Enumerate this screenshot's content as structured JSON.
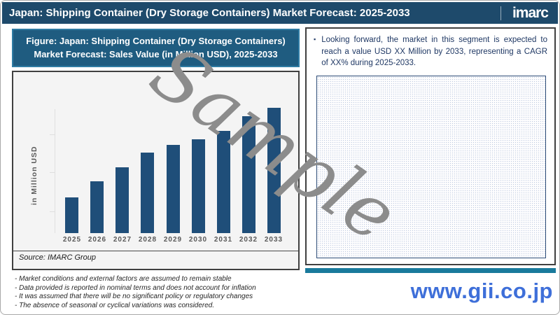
{
  "header": {
    "title": "Japan: Shipping Container (Dry Storage Containers) Market Forecast: 2025-2033",
    "logo": "imarc"
  },
  "figure": {
    "title": "Figure: Japan: Shipping Container (Dry Storage Containers) Market Forecast: Sales Value (in Million USD), 2025-2033",
    "source": "Source: IMARC Group"
  },
  "chart_data": {
    "type": "bar",
    "title": "Japan: Shipping Container (Dry Storage Containers) Market Forecast: Sales Value (in Million USD), 2025-2033",
    "categories": [
      "2025",
      "2026",
      "2027",
      "2028",
      "2029",
      "2030",
      "2031",
      "2032",
      "2033"
    ],
    "values": [
      28.5,
      41.5,
      52.5,
      64,
      70.5,
      75,
      81.5,
      93.5,
      100
    ],
    "values_note": "Bars are unlabeled in the figure (values shown as XX in text); heights are relative estimates with 2033 = 100",
    "xlabel": "",
    "ylabel": "in Million USD",
    "legend_visible": false,
    "grid": false,
    "y_ticks_labeled": false
  },
  "insight": {
    "bullet_glyph": "▪",
    "bullet": "Looking forward, the market in this segment is expected to reach a value USD XX Million by 2033, representing a CAGR of XX% during 2025-2033."
  },
  "notes": [
    "- Market conditions and external factors are assumed to remain stable",
    "- Data provided is reported in nominal terms and does not account for inflation",
    "- It was assumed that there will be no significant policy or regulatory changes",
    "- The absence of seasonal or cyclical variations was considered."
  ],
  "watermark": {
    "text": "Sample"
  },
  "footer": {
    "url": "www.gii.co.jp"
  },
  "colors": {
    "header_bg": "#1E4A6B",
    "figure_title_bg": "#1F5C80",
    "figure_title_border": "#2F7CA4",
    "bar": "#1F4E79",
    "plot_bg": "#F4F4F4",
    "accent_teal": "#1A7A9C",
    "insight_text": "#1F3864",
    "url_blue": "#3E6FD9",
    "watermark_gray": "#8C8C8C"
  }
}
